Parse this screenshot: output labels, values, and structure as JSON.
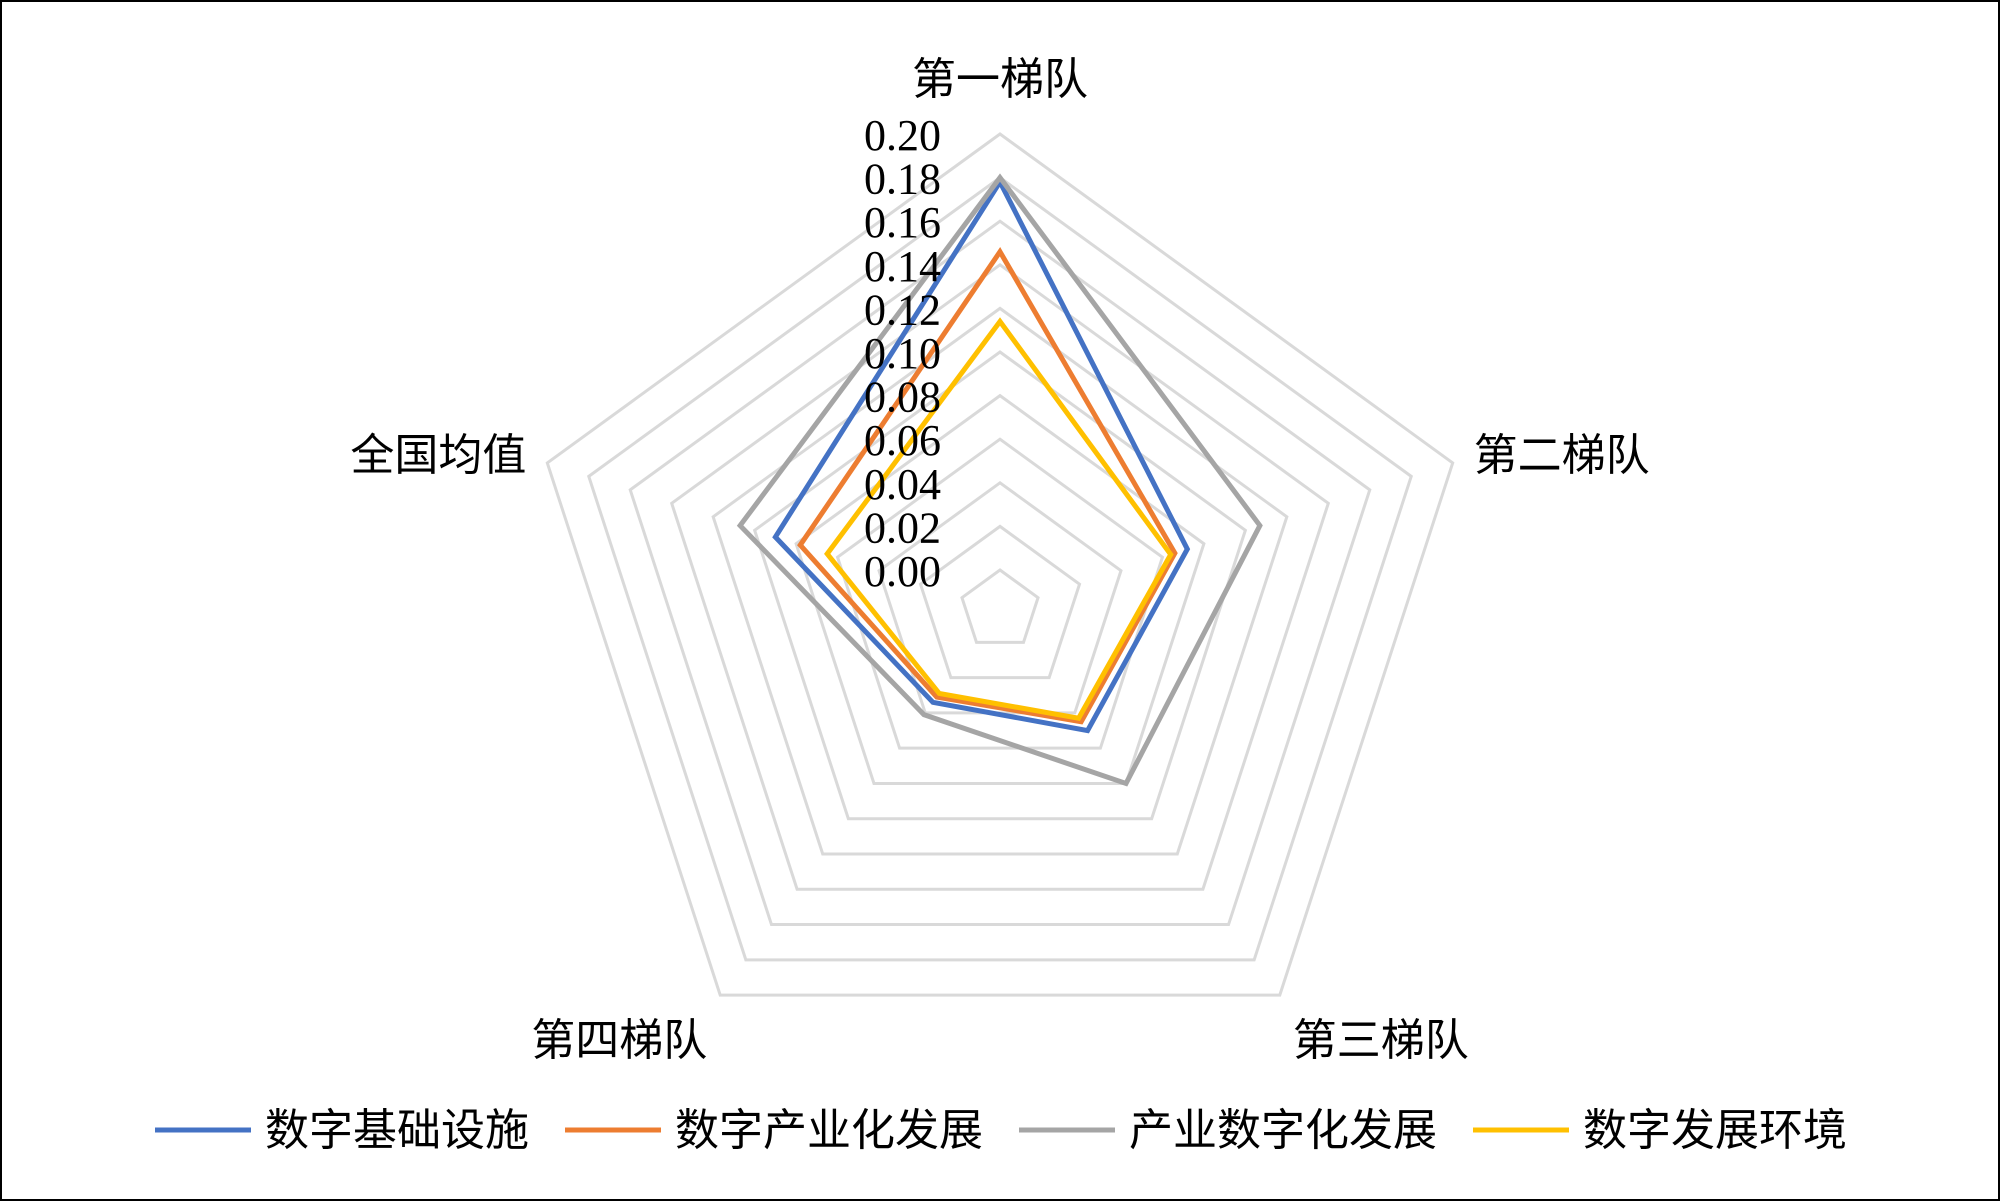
{
  "chart_data": {
    "type": "radar",
    "title": "",
    "categories": [
      "第一梯队",
      "第二梯队",
      "第三梯队",
      "第四梯队",
      "全国均值"
    ],
    "rlim": [
      0,
      0.2
    ],
    "ticks": [
      "0.00",
      "0.02",
      "0.04",
      "0.06",
      "0.08",
      "0.10",
      "0.12",
      "0.14",
      "0.16",
      "0.18",
      "0.20"
    ],
    "grid": true,
    "legend_position": "bottom",
    "series": [
      {
        "name": "数字基础设施",
        "color": "#4472C4",
        "values": [
          0.178,
          0.072,
          0.05,
          0.034,
          0.09
        ]
      },
      {
        "name": "数字产业化发展",
        "color": "#ED7D31",
        "values": [
          0.146,
          0.066,
          0.045,
          0.031,
          0.078
        ]
      },
      {
        "name": "产业数字化发展",
        "color": "#A5A5A5",
        "values": [
          0.18,
          0.107,
          0.08,
          0.041,
          0.107
        ]
      },
      {
        "name": "数字发展环境",
        "color": "#FFC000",
        "values": [
          0.114,
          0.064,
          0.043,
          0.029,
          0.065
        ]
      }
    ]
  }
}
